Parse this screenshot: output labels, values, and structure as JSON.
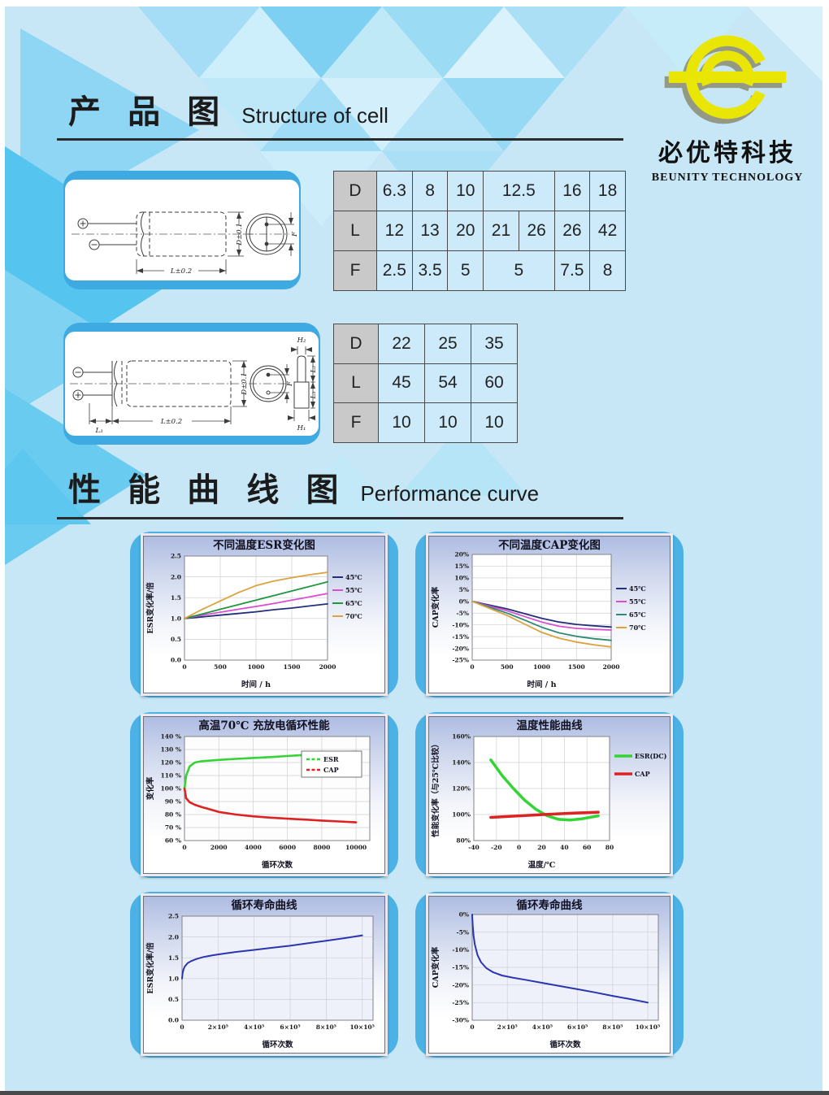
{
  "logo": {
    "brand_cn": "必优特科技",
    "brand_en": "BEUNITY TECHNOLOGY",
    "mark_color": "#e9e606"
  },
  "sections": [
    {
      "cn": "产 品 图",
      "en": "Structure of cell"
    },
    {
      "cn": "性 能 曲 线 图",
      "en": "Performance curve"
    }
  ],
  "diagrams": [
    {
      "plus": "+",
      "minus": "−",
      "dim_l": "L±0.2",
      "dim_d": "D±0.1",
      "dim_f": "F"
    },
    {
      "plus": "+",
      "minus": "−",
      "dim_l": "L±0.2",
      "dim_d": "D±0.1",
      "dim_f": "F",
      "dim_l3": "L₃",
      "dim_h2": "H₂",
      "dim_l2": "L₂",
      "dim_h1": "H₁"
    }
  ],
  "tables": [
    {
      "rows": [
        {
          "header": "D",
          "cells": [
            [
              "6.3",
              1
            ],
            [
              "8",
              1
            ],
            [
              "10",
              1
            ],
            [
              "12.5",
              2
            ],
            [
              "16",
              1
            ],
            [
              "18",
              1
            ]
          ]
        },
        {
          "header": "L",
          "cells": [
            [
              "12",
              1
            ],
            [
              "13",
              1
            ],
            [
              "20",
              1
            ],
            [
              "21",
              1
            ],
            [
              "26",
              1
            ],
            [
              "26",
              1
            ],
            [
              "42",
              1
            ]
          ]
        },
        {
          "header": "F",
          "cells": [
            [
              "2.5",
              1
            ],
            [
              "3.5",
              1
            ],
            [
              "5",
              1
            ],
            [
              "5",
              2
            ],
            [
              "7.5",
              1
            ],
            [
              "8",
              1
            ]
          ]
        }
      ]
    },
    {
      "rows": [
        {
          "header": "D",
          "cells": [
            [
              "22",
              1
            ],
            [
              "25",
              1
            ],
            [
              "35",
              1
            ]
          ]
        },
        {
          "header": "L",
          "cells": [
            [
              "45",
              1
            ],
            [
              "54",
              1
            ],
            [
              "60",
              1
            ]
          ]
        },
        {
          "header": "F",
          "cells": [
            [
              "10",
              1
            ],
            [
              "10",
              1
            ],
            [
              "10",
              1
            ]
          ]
        }
      ]
    }
  ],
  "chart_data": [
    {
      "type": "line",
      "title": "不同温度ESR变化图",
      "xlabel": "时间 / h",
      "ylabel": "ESR变化率/倍",
      "xlim": [
        0,
        2000
      ],
      "ylim": [
        0,
        2.5
      ],
      "xticks": [
        0,
        500,
        1000,
        1500,
        2000
      ],
      "yticks": [
        2.5,
        2.0,
        1.5,
        1.0,
        0.5,
        0.0
      ],
      "ytick_labels": [
        "2.5",
        "2.0",
        "1.5",
        "1.0",
        "0.5",
        "0.0"
      ],
      "plot_bg": "#ffffff",
      "legend_position": "right",
      "series": [
        {
          "name": "45℃",
          "color": "#232f7c",
          "x": [
            0,
            250,
            500,
            750,
            1000,
            1250,
            1500,
            1750,
            2000
          ],
          "y": [
            1.0,
            1.04,
            1.08,
            1.12,
            1.16,
            1.21,
            1.25,
            1.3,
            1.35
          ]
        },
        {
          "name": "55℃",
          "color": "#d94fd0",
          "x": [
            0,
            250,
            500,
            750,
            1000,
            1250,
            1500,
            1750,
            2000
          ],
          "y": [
            1.0,
            1.08,
            1.15,
            1.22,
            1.29,
            1.36,
            1.44,
            1.52,
            1.6
          ]
        },
        {
          "name": "65℃",
          "color": "#1f9640",
          "x": [
            0,
            250,
            500,
            750,
            1000,
            1250,
            1500,
            1750,
            2000
          ],
          "y": [
            1.0,
            1.11,
            1.22,
            1.33,
            1.44,
            1.55,
            1.66,
            1.77,
            1.88
          ]
        },
        {
          "name": "70℃",
          "color": "#dba23e",
          "x": [
            0,
            250,
            500,
            750,
            1000,
            1250,
            1500,
            1750,
            2000
          ],
          "y": [
            1.0,
            1.22,
            1.42,
            1.62,
            1.79,
            1.9,
            1.98,
            2.05,
            2.11
          ]
        }
      ]
    },
    {
      "type": "line",
      "title": "不同温度CAP变化图",
      "xlabel": "时间 / h",
      "ylabel": "CAP变化率",
      "xlim": [
        0,
        2000
      ],
      "ylim": [
        -25,
        20
      ],
      "xticks": [
        0,
        500,
        1000,
        1500,
        2000
      ],
      "yticks": [
        20,
        15,
        10,
        5,
        0,
        -5,
        -10,
        -15,
        -20,
        -25
      ],
      "ytick_labels": [
        "20%",
        "15%",
        "10%",
        "5%",
        "0%",
        "-5%",
        "-10%",
        "-15%",
        "-20%",
        "-25%"
      ],
      "plot_bg": "#ffffff",
      "legend_position": "right",
      "series": [
        {
          "name": "45℃",
          "color": "#232f7c",
          "x": [
            0,
            250,
            500,
            750,
            1000,
            1250,
            1500,
            1750,
            2000
          ],
          "y": [
            0,
            -1.6,
            -3.2,
            -5.2,
            -7.2,
            -8.8,
            -9.8,
            -10.4,
            -10.9
          ]
        },
        {
          "name": "55℃",
          "color": "#d94fd0",
          "x": [
            0,
            250,
            500,
            750,
            1000,
            1250,
            1500,
            1750,
            2000
          ],
          "y": [
            0,
            -2.0,
            -4.0,
            -6.4,
            -8.8,
            -10.6,
            -11.5,
            -11.9,
            -12.2
          ]
        },
        {
          "name": "65℃",
          "color": "#2e8b74",
          "x": [
            0,
            250,
            500,
            750,
            1000,
            1250,
            1500,
            1750,
            2000
          ],
          "y": [
            0,
            -2.5,
            -5.0,
            -7.9,
            -11.0,
            -13.4,
            -14.9,
            -15.9,
            -16.6
          ]
        },
        {
          "name": "70℃",
          "color": "#dba23e",
          "x": [
            0,
            250,
            500,
            750,
            1000,
            1250,
            1500,
            1750,
            2000
          ],
          "y": [
            0,
            -3.0,
            -6.0,
            -9.6,
            -13.2,
            -15.7,
            -17.3,
            -18.5,
            -19.4
          ]
        }
      ]
    },
    {
      "type": "line",
      "title": "高温70℃  充放电循环性能",
      "xlabel": "循环次数",
      "ylabel": "变化率",
      "xlim": [
        0,
        10800
      ],
      "ylim": [
        60,
        140
      ],
      "xticks": [
        0,
        2000,
        4000,
        6000,
        8000,
        10000
      ],
      "yticks": [
        140,
        130,
        120,
        110,
        100,
        90,
        80,
        70,
        60
      ],
      "ytick_labels": [
        "140 %",
        "130 %",
        "120 %",
        "110 %",
        "100 %",
        "90 %",
        "80 %",
        "70 %",
        "60 %"
      ],
      "plot_bg": "#fdfdfd",
      "legend_position": "box",
      "series": [
        {
          "name": "ESR",
          "color": "#35d435",
          "width": 2.6,
          "x": [
            0,
            100,
            300,
            600,
            1000,
            2000,
            3000,
            4000,
            5000,
            6000,
            7000,
            8000,
            9000,
            10000
          ],
          "y": [
            100,
            110,
            117,
            120,
            121,
            122,
            122.8,
            123.5,
            124.2,
            125,
            125.8,
            126.6,
            127.4,
            128.3
          ]
        },
        {
          "name": "CAP",
          "color": "#dd2222",
          "width": 2.6,
          "x": [
            0,
            100,
            300,
            600,
            1000,
            2000,
            3000,
            4000,
            5000,
            6000,
            7000,
            8000,
            9000,
            10000
          ],
          "y": [
            100,
            92.5,
            89.5,
            87.5,
            85.8,
            82,
            80,
            78.6,
            77.6,
            76.8,
            76.1,
            75.4,
            74.7,
            74
          ]
        }
      ]
    },
    {
      "type": "line",
      "title": "温度性能曲线",
      "xlabel": "温度/℃",
      "ylabel": "性能变化率（与25℃比较）",
      "xlim": [
        -40,
        80
      ],
      "ylim": [
        80,
        160
      ],
      "xticks": [
        -40,
        -20,
        0,
        20,
        40,
        60,
        80
      ],
      "yticks": [
        160,
        140,
        120,
        100,
        80
      ],
      "ytick_labels": [
        "160%",
        "140%",
        "120%",
        "100%",
        "80%"
      ],
      "plot_bg": "#ffffff",
      "legend_position": "right",
      "series": [
        {
          "name": "ESR(DC)",
          "color": "#35d435",
          "width": 3.5,
          "x": [
            -25,
            -15,
            -5,
            5,
            15,
            25,
            35,
            45,
            55,
            65,
            70
          ],
          "y": [
            142,
            130,
            120,
            111,
            104,
            99,
            96.3,
            95.8,
            96.6,
            98.2,
            99
          ]
        },
        {
          "name": "CAP",
          "color": "#dd2222",
          "width": 3.5,
          "x": [
            -25,
            0,
            25,
            50,
            70
          ],
          "y": [
            97.8,
            99,
            100.2,
            101.2,
            101.8
          ]
        }
      ]
    },
    {
      "type": "line",
      "title": "循环寿命曲线",
      "xlabel": "循环次数",
      "ylabel": "ESR变化率/倍",
      "xlim": [
        0,
        10.6
      ],
      "ylim": [
        0,
        2.5
      ],
      "xticks": [
        0,
        2,
        4,
        6,
        8,
        10
      ],
      "xtick_labels": [
        "0",
        "2×10⁵",
        "4×10⁵",
        "6×10⁵",
        "8×10⁵",
        "10×10⁵"
      ],
      "yticks": [
        2.5,
        2.0,
        1.5,
        1.0,
        0.5,
        0.0
      ],
      "ytick_labels": [
        "2.5",
        "2.0",
        "1.5",
        "1.0",
        "0.5",
        "0.0"
      ],
      "plot_bg": "#eef1fa",
      "series": [
        {
          "name": "ESR",
          "color": "#2a35b0",
          "width": 2,
          "x": [
            0,
            0.03,
            0.08,
            0.15,
            0.3,
            0.5,
            0.8,
            1.2,
            1.7,
            2.3,
            3,
            4,
            5,
            6,
            7,
            8,
            9,
            10
          ],
          "y": [
            1.0,
            1.13,
            1.22,
            1.29,
            1.37,
            1.42,
            1.47,
            1.52,
            1.56,
            1.6,
            1.64,
            1.69,
            1.74,
            1.79,
            1.85,
            1.91,
            1.97,
            2.04
          ]
        }
      ]
    },
    {
      "type": "line",
      "title": "循环寿命曲线",
      "xlabel": "循环次数",
      "ylabel": "CAP变化率",
      "xlim": [
        0,
        10.6
      ],
      "ylim": [
        -30,
        0
      ],
      "xticks": [
        0,
        2,
        4,
        6,
        8,
        10
      ],
      "xtick_labels": [
        "0",
        "2×10⁵",
        "4×10⁵",
        "6×10⁵",
        "8×10⁵",
        "10×10⁵"
      ],
      "yticks": [
        0,
        -5,
        -10,
        -15,
        -20,
        -25,
        -30
      ],
      "ytick_labels": [
        "0%",
        "-5%",
        "-10%",
        "-15%",
        "-20%",
        "-25%",
        "-30%"
      ],
      "plot_bg": "#eef1fa",
      "series": [
        {
          "name": "CAP",
          "color": "#2a35b0",
          "width": 2,
          "x": [
            0,
            0.03,
            0.08,
            0.15,
            0.3,
            0.5,
            0.8,
            1.2,
            1.7,
            2.3,
            3,
            4,
            5,
            6,
            7,
            8,
            9,
            10
          ],
          "y": [
            0,
            -3,
            -6,
            -8.5,
            -11.5,
            -13.5,
            -15.2,
            -16.4,
            -17.3,
            -17.9,
            -18.5,
            -19.4,
            -20.3,
            -21.2,
            -22.1,
            -23.1,
            -24,
            -25
          ]
        }
      ]
    }
  ]
}
